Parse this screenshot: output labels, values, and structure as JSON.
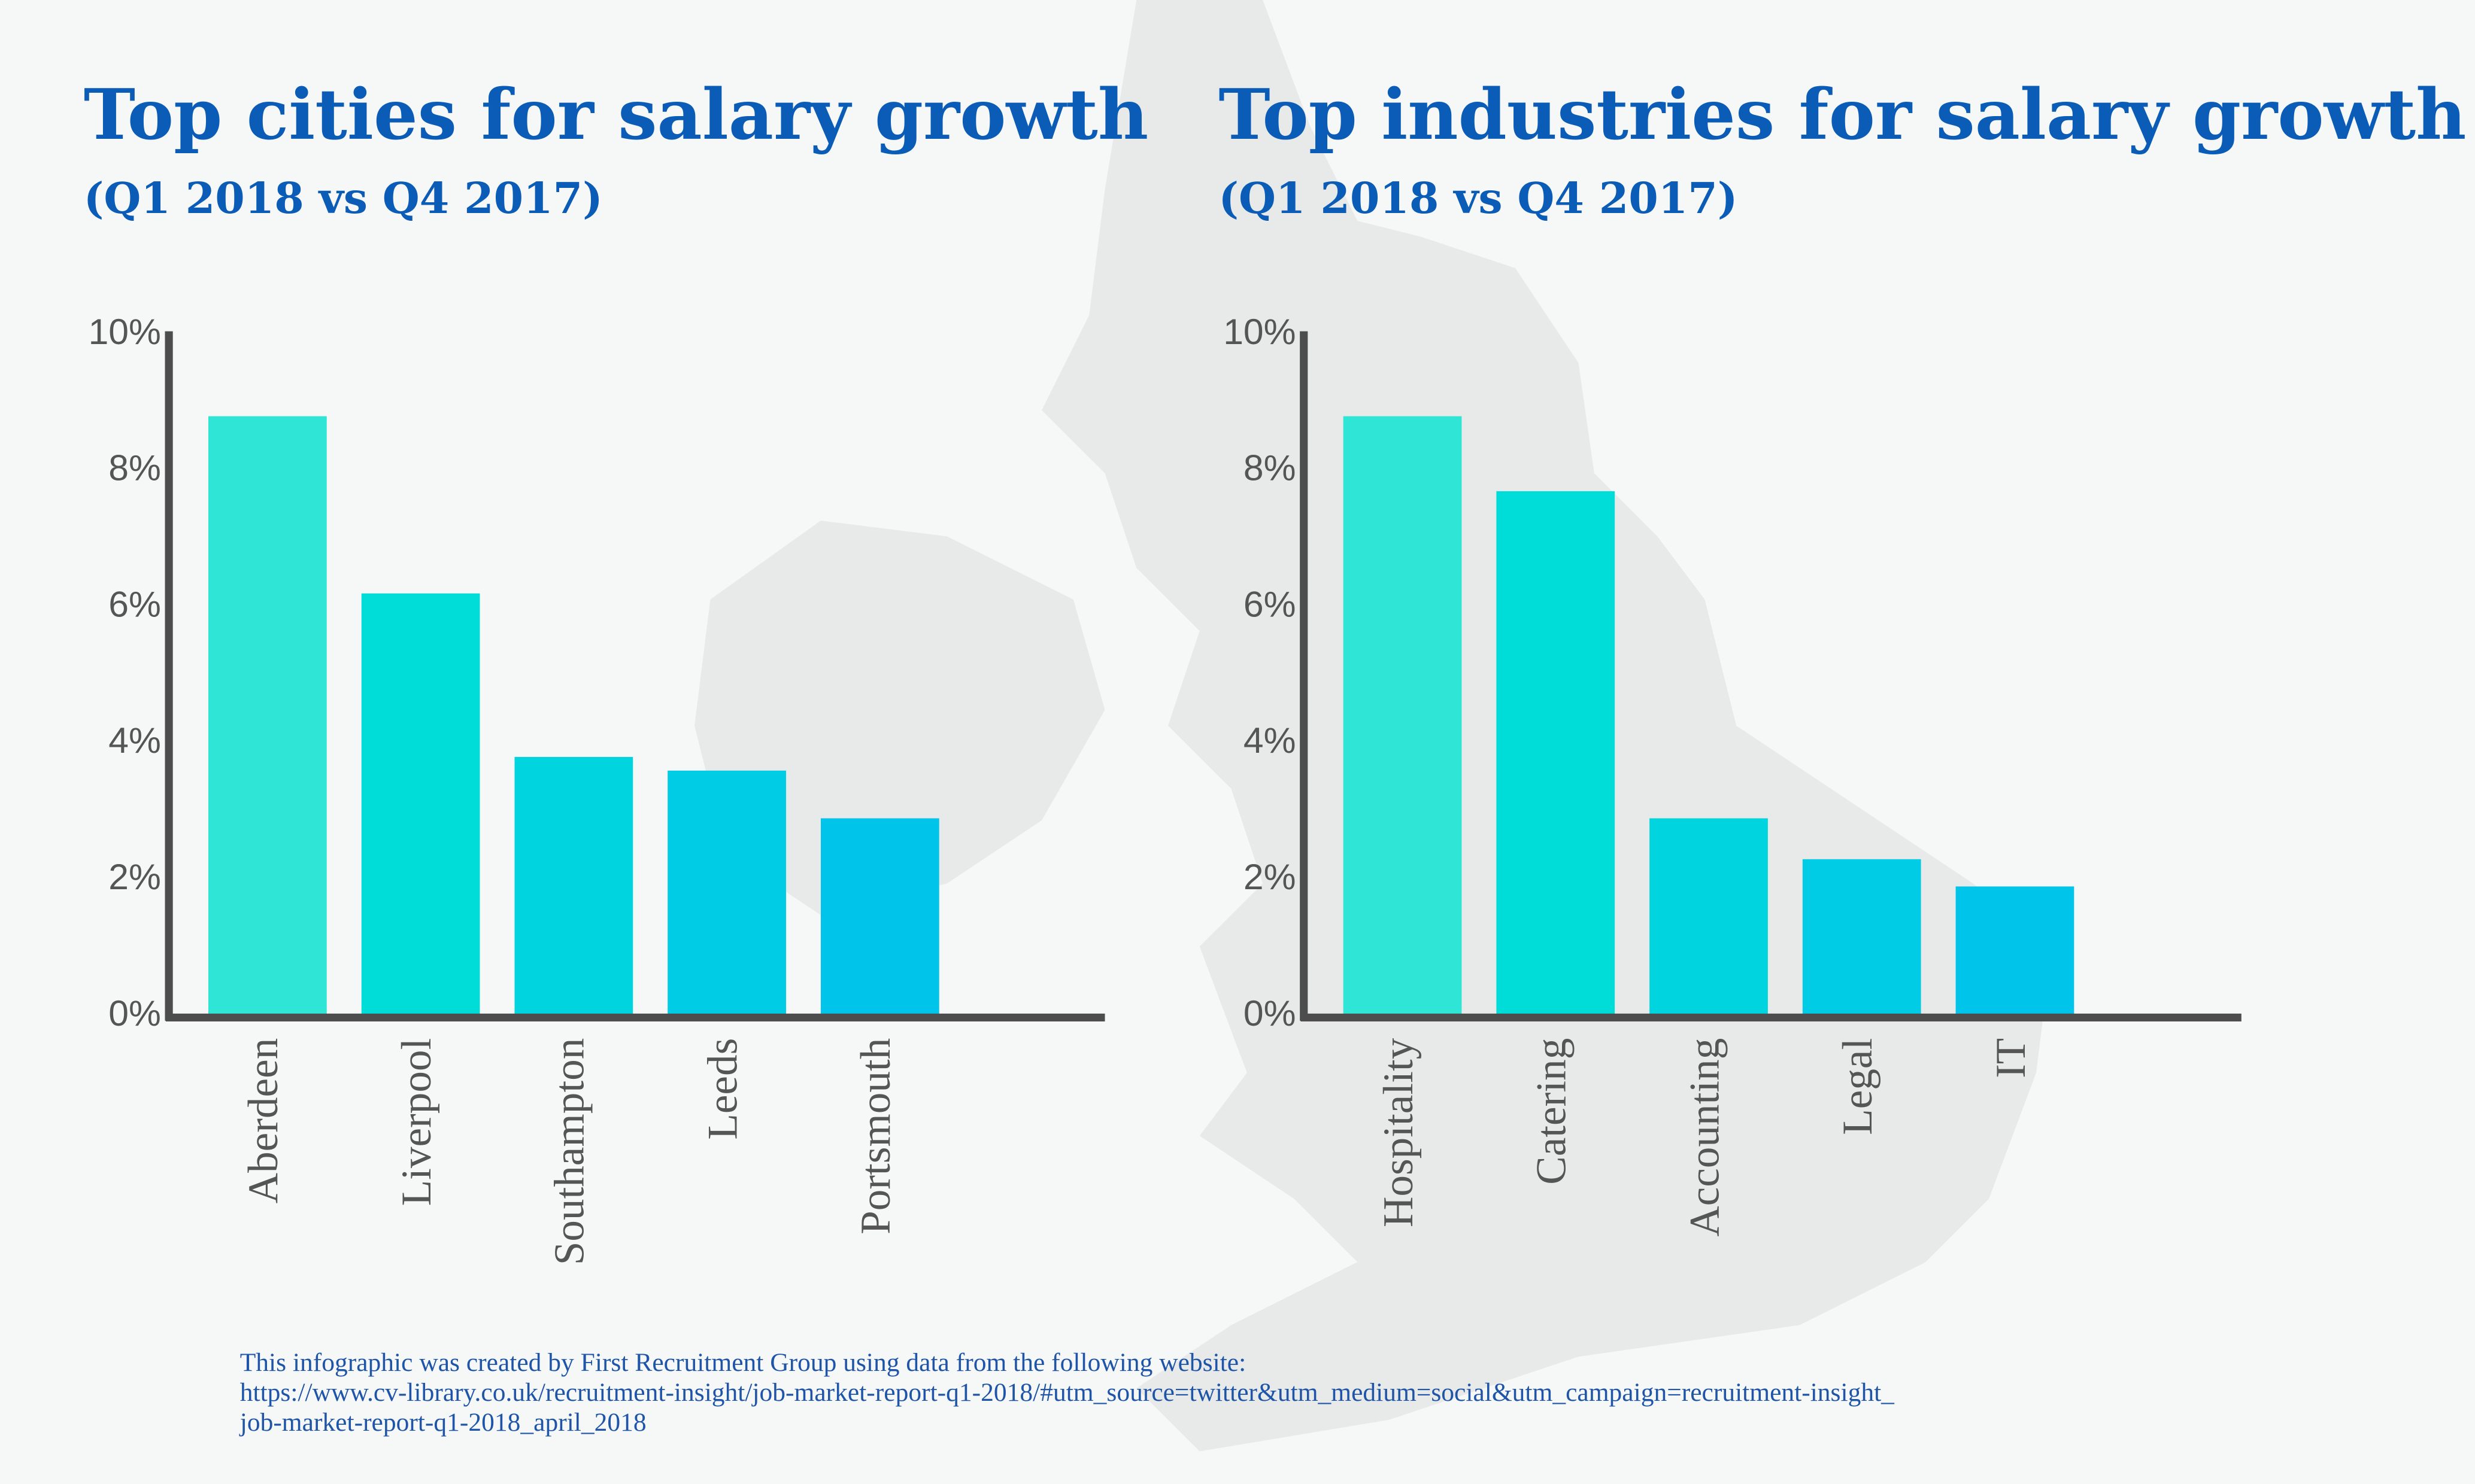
{
  "chart_data": [
    {
      "type": "bar",
      "title": "Top cities for salary growth",
      "subtitle": "(Q1 2018 vs Q4 2017)",
      "categories": [
        "Aberdeen",
        "Liverpool",
        "Southampton",
        "Leeds",
        "Portsmouth"
      ],
      "values": [
        8.8,
        6.2,
        3.8,
        3.6,
        2.9
      ],
      "colors": [
        "#2ee5d6",
        "#00ddd8",
        "#00d5df",
        "#00cce5",
        "#00c4ea"
      ],
      "ylim": [
        0,
        10
      ],
      "yticks": [
        {
          "value": 0,
          "label": "0%"
        },
        {
          "value": 2,
          "label": "2%"
        },
        {
          "value": 4,
          "label": "4%"
        },
        {
          "value": 6,
          "label": "6%"
        },
        {
          "value": 8,
          "label": "8%"
        },
        {
          "value": 10,
          "label": "10%"
        }
      ]
    },
    {
      "type": "bar",
      "title": "Top industries for salary growth",
      "subtitle": "(Q1 2018 vs Q4 2017)",
      "categories": [
        "Hospitality",
        "Catering",
        "Accounting",
        "Legal",
        "IT"
      ],
      "values": [
        8.8,
        7.7,
        2.9,
        2.3,
        1.9
      ],
      "colors": [
        "#2ee5d6",
        "#00ddd8",
        "#00d5df",
        "#00cce5",
        "#00c4ea"
      ],
      "ylim": [
        0,
        10
      ],
      "yticks": [
        {
          "value": 0,
          "label": "0%"
        },
        {
          "value": 2,
          "label": "2%"
        },
        {
          "value": 4,
          "label": "4%"
        },
        {
          "value": 6,
          "label": "6%"
        },
        {
          "value": 8,
          "label": "8%"
        },
        {
          "value": 10,
          "label": "10%"
        }
      ]
    }
  ],
  "footer": [
    "This infographic was created by First Recruitment Group using data from the following website:",
    "https://www.cv-library.co.uk/recruitment-insight/job-market-report-q1-2018/#utm_source=twitter&utm_medium=social&utm_campaign=recruitment-insight_",
    "job-market-report-q1-2018_april_2018"
  ]
}
